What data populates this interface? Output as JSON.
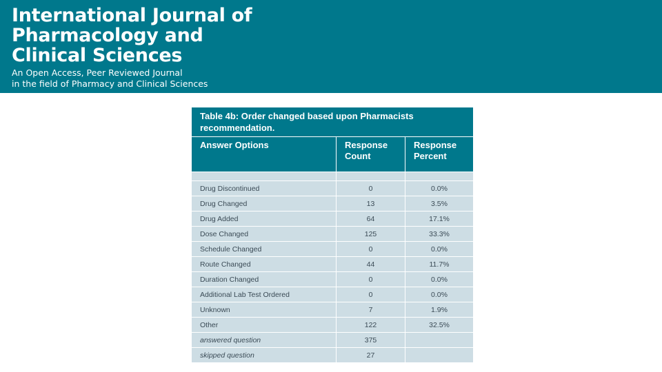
{
  "header": {
    "title": "International Journal of\nPharmacology and\nClinical Sciences",
    "subtitle": "An Open Access, Peer Reviewed Journal\nin the field of Pharmacy and Clinical Sciences"
  },
  "table": {
    "caption": "Table 4b: Order changed based upon Pharmacists recommendation.",
    "columns": [
      "Answer Options",
      "Response Count",
      "Response Percent"
    ],
    "rows": [
      {
        "option": "Drug Discontinued",
        "count": "0",
        "percent": "0.0%"
      },
      {
        "option": "Drug Changed",
        "count": "13",
        "percent": "3.5%"
      },
      {
        "option": "Drug Added",
        "count": "64",
        "percent": "17.1%"
      },
      {
        "option": "Dose Changed",
        "count": "125",
        "percent": "33.3%"
      },
      {
        "option": "Schedule Changed",
        "count": "0",
        "percent": "0.0%"
      },
      {
        "option": "Route Changed",
        "count": "44",
        "percent": "11.7%"
      },
      {
        "option": "Duration Changed",
        "count": "0",
        "percent": "0.0%"
      },
      {
        "option": "Additional Lab Test Ordered",
        "count": "0",
        "percent": "0.0%"
      },
      {
        "option": "Unknown",
        "count": "7",
        "percent": "1.9%"
      },
      {
        "option": "Other",
        "count": "122",
        "percent": "32.5%"
      }
    ],
    "footer": [
      {
        "option": "answered question",
        "count": "375"
      },
      {
        "option": "skipped question",
        "count": "27"
      }
    ]
  }
}
